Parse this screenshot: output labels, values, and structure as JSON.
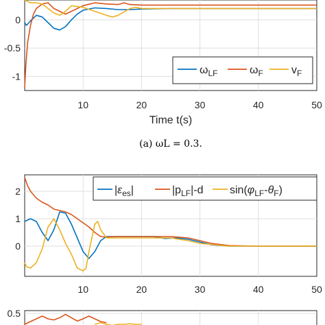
{
  "colors": {
    "blue": "#0072BD",
    "orange": "#D95319",
    "yellow": "#EDB120"
  },
  "chart_data": [
    {
      "type": "line",
      "xlabel": "Time t(s)",
      "ylabel": "",
      "xlim": [
        0,
        50
      ],
      "ylim": [
        -1.25,
        0.35
      ],
      "xticks": [
        "10",
        "20",
        "30",
        "40",
        "50"
      ],
      "yticks": [
        "0",
        "-0.5",
        "-1"
      ],
      "grid": true,
      "legend": "bottom-right",
      "caption": "(a) ωL = 0.3.",
      "series": [
        {
          "name": "ω_LF",
          "color": "blue",
          "x": [
            0,
            0.3,
            1,
            2,
            3,
            4,
            5,
            6,
            7,
            8,
            9,
            10,
            12,
            14,
            16,
            18,
            20,
            25,
            30,
            40,
            50
          ],
          "y": [
            -0.05,
            -0.1,
            -0.02,
            0.08,
            0.05,
            -0.05,
            -0.15,
            -0.18,
            -0.12,
            0.0,
            0.1,
            0.17,
            0.21,
            0.2,
            0.18,
            0.18,
            0.19,
            0.2,
            0.2,
            0.2,
            0.2
          ]
        },
        {
          "name": "ω_F",
          "color": "orange",
          "x": [
            0,
            0.2,
            0.5,
            1,
            1.5,
            2,
            3,
            4,
            5,
            6,
            7,
            8,
            10,
            12,
            14,
            16,
            17,
            18,
            20,
            25,
            30,
            40,
            50
          ],
          "y": [
            -1.2,
            -0.8,
            -0.4,
            -0.1,
            0.1,
            0.2,
            0.28,
            0.3,
            0.2,
            0.15,
            0.1,
            0.15,
            0.25,
            0.3,
            0.28,
            0.27,
            0.3,
            0.27,
            0.26,
            0.26,
            0.26,
            0.26,
            0.26
          ]
        },
        {
          "name": "v_F",
          "color": "yellow",
          "x": [
            0,
            1,
            2,
            3,
            4,
            5,
            6,
            7,
            8,
            10,
            12,
            14,
            15,
            16,
            18,
            19,
            20,
            25,
            30,
            40,
            50
          ],
          "y": [
            0.35,
            0.3,
            0.3,
            0.28,
            0.2,
            0.12,
            0.08,
            0.15,
            0.25,
            0.22,
            0.15,
            0.08,
            0.05,
            0.08,
            0.2,
            0.22,
            0.2,
            0.2,
            0.2,
            0.2,
            0.2
          ]
        }
      ]
    },
    {
      "type": "line",
      "xlabel": "",
      "ylabel": "",
      "xlim": [
        0,
        50
      ],
      "ylim": [
        -1.1,
        2.6
      ],
      "xticks": [
        "10",
        "20",
        "30",
        "40",
        "50"
      ],
      "yticks": [
        "2",
        "1",
        "0"
      ],
      "grid": true,
      "legend": "top",
      "series": [
        {
          "name": "|ε_es|",
          "color": "blue",
          "x": [
            0,
            1,
            2,
            3,
            4,
            5,
            6,
            7,
            8,
            9,
            10,
            11,
            12,
            13,
            14,
            15,
            16,
            18,
            20,
            22,
            24,
            26,
            28,
            30,
            32,
            35,
            40,
            50
          ],
          "y": [
            0.9,
            1.0,
            0.9,
            0.5,
            0.2,
            0.6,
            1.25,
            1.2,
            0.8,
            0.3,
            -0.2,
            -0.45,
            -0.2,
            0.2,
            0.35,
            0.35,
            0.35,
            0.35,
            0.35,
            0.35,
            0.28,
            0.3,
            0.25,
            0.15,
            0.05,
            0.0,
            0.0,
            0.0
          ]
        },
        {
          "name": "|p_LF|-d",
          "color": "orange",
          "x": [
            0,
            0.5,
            1,
            2,
            3,
            4,
            5,
            6,
            7,
            8,
            9,
            10,
            11,
            12,
            13,
            14,
            16,
            20,
            25,
            28,
            30,
            32,
            35,
            40,
            50
          ],
          "y": [
            2.5,
            2.2,
            2.0,
            1.75,
            1.6,
            1.5,
            1.35,
            1.3,
            1.25,
            1.15,
            1.0,
            0.85,
            0.7,
            0.5,
            0.35,
            0.33,
            0.35,
            0.35,
            0.35,
            0.3,
            0.2,
            0.1,
            0.02,
            0.0,
            0.0
          ]
        },
        {
          "name": "sin(φ_LF-θ_F)",
          "color": "yellow",
          "x": [
            0,
            0.3,
            1,
            2,
            3,
            4,
            5,
            6,
            7,
            8,
            9,
            10,
            10.5,
            11,
            12,
            12.5,
            13,
            14,
            15,
            18,
            20,
            22,
            25,
            28,
            30,
            35,
            40,
            50
          ],
          "y": [
            -0.6,
            -0.75,
            -0.8,
            -0.6,
            -0.1,
            0.7,
            1.0,
            0.6,
            0.1,
            -0.3,
            -0.8,
            -0.9,
            -0.8,
            -0.2,
            0.8,
            0.9,
            0.6,
            0.3,
            0.3,
            0.3,
            0.3,
            0.3,
            0.3,
            0.2,
            0.1,
            0.0,
            0.0,
            0.0
          ]
        }
      ]
    },
    {
      "type": "line",
      "xlabel": "",
      "ylabel": "",
      "xlim": [
        0,
        50
      ],
      "ylim": [
        0.05,
        0.55
      ],
      "xticks": [],
      "yticks": [
        "0.5"
      ],
      "grid": true,
      "legend": "",
      "series": [
        {
          "name": "",
          "color": "orange",
          "x": [
            0,
            1,
            2,
            3,
            4,
            5,
            6,
            7,
            8,
            9,
            10,
            11,
            12,
            13,
            14
          ],
          "y": [
            0.3,
            0.35,
            0.4,
            0.45,
            0.4,
            0.38,
            0.42,
            0.48,
            0.42,
            0.36,
            0.4,
            0.45,
            0.4,
            0.35,
            0.33
          ]
        },
        {
          "name": "",
          "color": "yellow",
          "x": [
            12,
            13,
            14,
            15,
            16,
            17,
            18,
            19,
            20
          ],
          "y": [
            0.3,
            0.33,
            0.3,
            0.28,
            0.3,
            0.3,
            0.31,
            0.3,
            0.3
          ]
        }
      ]
    }
  ]
}
